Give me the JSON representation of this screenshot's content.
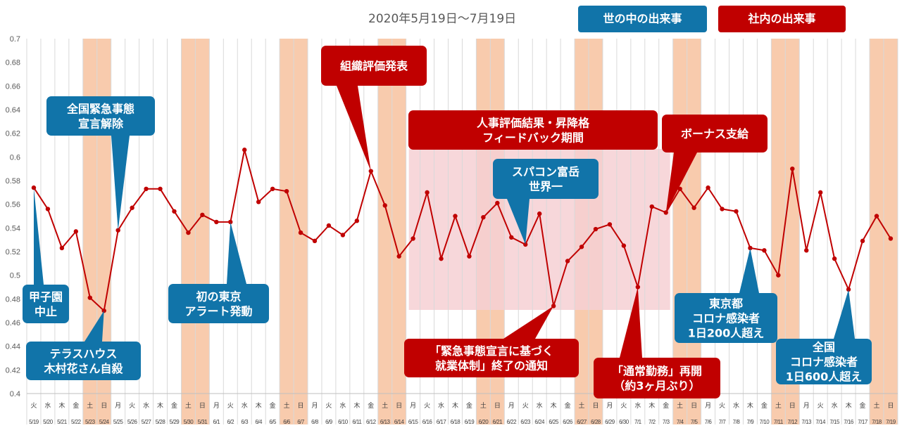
{
  "period": "2020年5月19日〜7月19日",
  "legend": {
    "world_label": "世の中の出来事",
    "company_label": "社内の出来事",
    "world_color": "#1174A9",
    "company_color": "#C00000"
  },
  "colors": {
    "line": "#C00000",
    "weekend": "#F8CBAD",
    "feedback_period": "#F6D0D3"
  },
  "chart_data": {
    "type": "line",
    "ylim": [
      0.4,
      0.7
    ],
    "y_ticks": [
      "0.4",
      "0.42",
      "0.44",
      "0.46",
      "0.48",
      "0.5",
      "0.52",
      "0.54",
      "0.56",
      "0.58",
      "0.6",
      "0.62",
      "0.64",
      "0.66",
      "0.68",
      "0.7"
    ],
    "grid": "vertical",
    "x_weekdays": [
      "火",
      "水",
      "木",
      "金",
      "土",
      "日",
      "月",
      "火",
      "水",
      "木",
      "金",
      "土",
      "日",
      "月",
      "火",
      "水",
      "木",
      "金",
      "土",
      "日",
      "月",
      "火",
      "水",
      "木",
      "金",
      "土",
      "日",
      "月",
      "火",
      "水",
      "木",
      "金",
      "土",
      "日",
      "月",
      "火",
      "水",
      "木",
      "金",
      "土",
      "日",
      "月",
      "火",
      "水",
      "木",
      "金",
      "土",
      "日",
      "月",
      "火",
      "水",
      "木",
      "金",
      "土",
      "日",
      "月",
      "火",
      "水",
      "木",
      "金",
      "土",
      "日"
    ],
    "x_dates": [
      "5/19",
      "5/20",
      "5/21",
      "5/22",
      "5/23",
      "5/24",
      "5/25",
      "5/26",
      "5/27",
      "5/28",
      "5/29",
      "5/30",
      "5/31",
      "6/1",
      "6/2",
      "6/3",
      "6/4",
      "6/5",
      "6/6",
      "6/7",
      "6/8",
      "6/9",
      "6/10",
      "6/11",
      "6/12",
      "6/13",
      "6/14",
      "6/15",
      "6/16",
      "6/17",
      "6/18",
      "6/19",
      "6/20",
      "6/21",
      "6/22",
      "6/23",
      "6/24",
      "6/25",
      "6/26",
      "6/27",
      "6/28",
      "6/29",
      "6/30",
      "7/1",
      "7/2",
      "7/3",
      "7/4",
      "7/5",
      "7/6",
      "7/7",
      "7/8",
      "7/9",
      "7/10",
      "7/11",
      "7/12",
      "7/13",
      "7/14",
      "7/15",
      "7/16",
      "7/17",
      "7/18",
      "7/19"
    ],
    "values": [
      0.574,
      0.556,
      0.523,
      0.537,
      0.481,
      0.47,
      0.538,
      0.557,
      0.573,
      0.573,
      0.554,
      0.536,
      0.551,
      0.545,
      0.545,
      0.606,
      0.562,
      0.573,
      0.571,
      0.536,
      0.529,
      0.542,
      0.534,
      0.546,
      0.588,
      0.559,
      0.516,
      0.531,
      0.57,
      0.514,
      0.55,
      0.516,
      0.549,
      0.561,
      0.532,
      0.526,
      0.552,
      0.474,
      0.512,
      0.524,
      0.539,
      0.543,
      0.525,
      0.49,
      0.558,
      0.553,
      0.573,
      0.557,
      0.574,
      0.556,
      0.554,
      0.523,
      0.521,
      0.5,
      0.59,
      0.521,
      0.57,
      0.514,
      0.488,
      0.529,
      0.55,
      0.531
    ],
    "weekend_label": [
      "土",
      "日"
    ],
    "feedback_period": {
      "from": "6/15",
      "to": "7/3"
    },
    "annotations": [
      {
        "id": "koshien",
        "text": [
          "甲子園",
          "中止"
        ],
        "kind": "world",
        "target": "5/19"
      },
      {
        "id": "terrace",
        "text": [
          "テラスハウス",
          "木村花さん自殺"
        ],
        "kind": "world",
        "target": "5/24"
      },
      {
        "id": "lifted",
        "text": [
          "全国緊急事態",
          "宣言解除"
        ],
        "kind": "world",
        "target": "5/25"
      },
      {
        "id": "tokyo_alert",
        "text": [
          "初の東京",
          "アラート発動"
        ],
        "kind": "world",
        "target": "6/2"
      },
      {
        "id": "eval_pub",
        "text": [
          "組織評価発表"
        ],
        "kind": "company",
        "target": "6/12"
      },
      {
        "id": "feedback",
        "text": [
          "人事評価結果・昇降格",
          "フィードバック期間"
        ],
        "kind": "company",
        "target": ""
      },
      {
        "id": "fugaku",
        "text": [
          "スパコン富岳",
          "世界一"
        ],
        "kind": "world",
        "target": "6/23"
      },
      {
        "id": "bonus",
        "text": [
          "ボーナス支給"
        ],
        "kind": "company",
        "target": "7/3"
      },
      {
        "id": "emergency_end",
        "text": [
          "「緊急事態宣言に基づく",
          "就業体制」終了の通知"
        ],
        "kind": "company",
        "target": "6/25"
      },
      {
        "id": "normal_work",
        "text": [
          "「通常勤務」再開",
          "（約3ヶ月ぶり）"
        ],
        "kind": "company",
        "target": "7/1"
      },
      {
        "id": "tokyo200",
        "text": [
          "東京都",
          "コロナ感染者",
          "1日200人超え"
        ],
        "kind": "world",
        "target": "7/9"
      },
      {
        "id": "national600",
        "text": [
          "全国",
          "コロナ感染者",
          "1日600人超え"
        ],
        "kind": "world",
        "target": "7/16"
      }
    ]
  }
}
